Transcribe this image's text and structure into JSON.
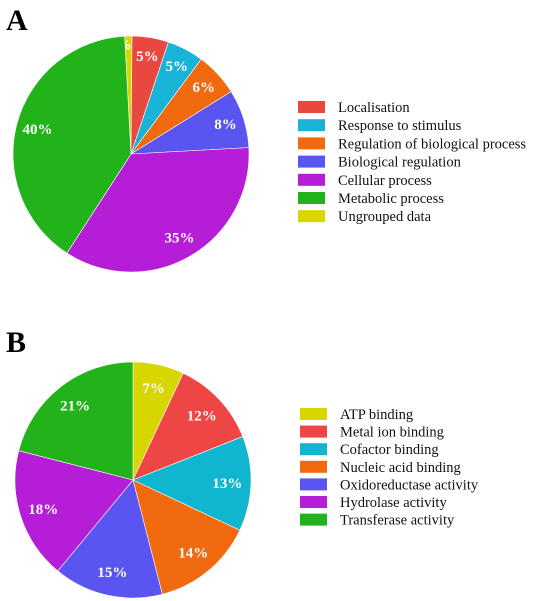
{
  "chart_data": [
    {
      "type": "pie",
      "panel_label": "A",
      "legend_position": "right",
      "slices": [
        {
          "label": "Localisation",
          "value": 5,
          "display": "5%",
          "color": "#e8483f"
        },
        {
          "label": "Response to stimulus",
          "value": 5,
          "display": "5%",
          "color": "#1ab3d8"
        },
        {
          "label": "Regulation of biological process",
          "value": 6,
          "display": "6%",
          "color": "#f26a10"
        },
        {
          "label": "Biological regulation",
          "value": 8,
          "display": "8%",
          "color": "#5a55f0"
        },
        {
          "label": "Cellular process",
          "value": 35,
          "display": "35%",
          "color": "#b51ed6"
        },
        {
          "label": "Metabolic process",
          "value": 40,
          "display": "40%",
          "color": "#22b31a"
        },
        {
          "label": "Ungrouped data",
          "value": 1,
          "display": "1%",
          "color": "#d7d600"
        }
      ]
    },
    {
      "type": "pie",
      "panel_label": "B",
      "legend_position": "right",
      "slices": [
        {
          "label": "ATP binding",
          "value": 7,
          "display": "7%",
          "color": "#d7d600"
        },
        {
          "label": "Metal ion binding",
          "value": 12,
          "display": "12%",
          "color": "#ee4545"
        },
        {
          "label": "Cofactor binding",
          "value": 13,
          "display": "13%",
          "color": "#10b6cf"
        },
        {
          "label": "Nucleic acid binding",
          "value": 14,
          "display": "14%",
          "color": "#f26a10"
        },
        {
          "label": "Oxidoreductase activity",
          "value": 15,
          "display": "15%",
          "color": "#5a55f0"
        },
        {
          "label": "Hydrolase activity",
          "value": 18,
          "display": "18%",
          "color": "#b51ed6"
        },
        {
          "label": "Transferase activity",
          "value": 21,
          "display": "21%",
          "color": "#22b31a"
        }
      ]
    }
  ]
}
